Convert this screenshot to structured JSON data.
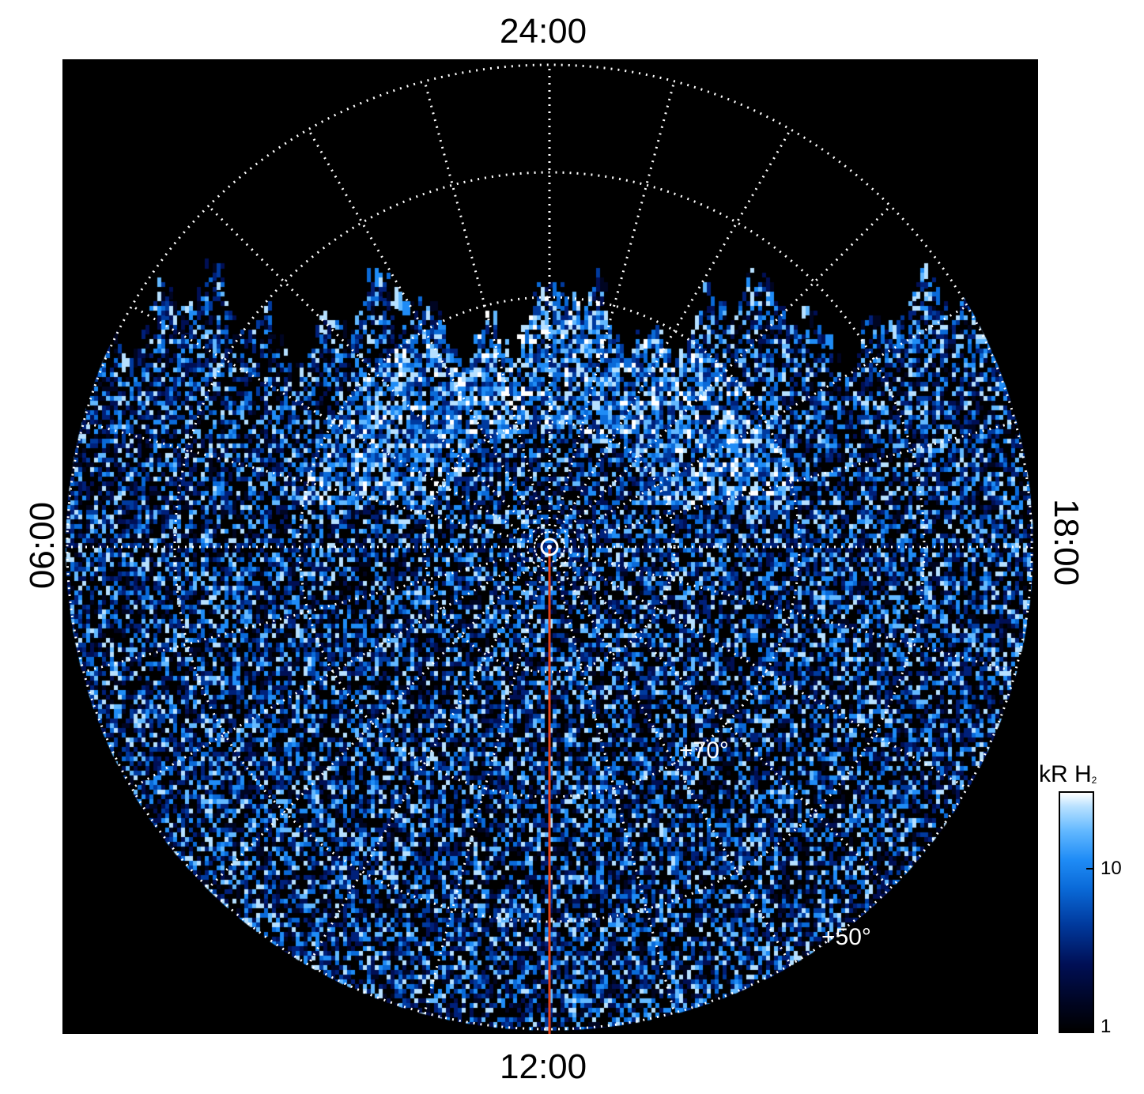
{
  "time_labels": {
    "top": "24:00",
    "bottom": "12:00",
    "left": "06:00",
    "right": "18:00"
  },
  "latitude_labels": [
    "+70°",
    "+50°"
  ],
  "colorbar": {
    "title": "kR H",
    "title_subscript": "2",
    "ticks": [
      "10",
      "1"
    ],
    "colors": [
      "#000000",
      "#000f55",
      "#0a6ad8",
      "#62b8ff",
      "#ffffff"
    ]
  },
  "colors": {
    "background": "#000000",
    "grid": "#ffffff",
    "meridian_line": "#e0401a"
  }
}
